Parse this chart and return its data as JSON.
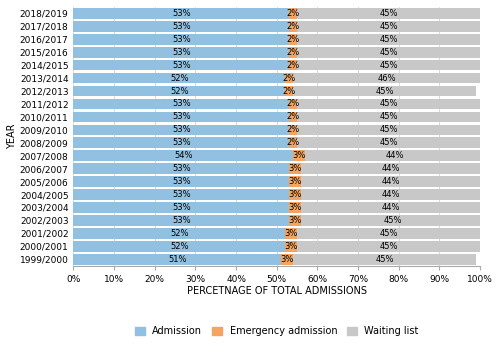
{
  "years": [
    "2018/2019",
    "2017/2018",
    "2016/2017",
    "2015/2016",
    "2014/2015",
    "2013/2014",
    "2012/2013",
    "2011/2012",
    "2010/2011",
    "2009/2010",
    "2008/2009",
    "2007/2008",
    "2006/2007",
    "2005/2006",
    "2004/2005",
    "2003/2004",
    "2002/2003",
    "2001/2002",
    "2000/2001",
    "1999/2000"
  ],
  "admission": [
    53,
    53,
    53,
    53,
    53,
    52,
    52,
    53,
    53,
    53,
    53,
    54,
    53,
    53,
    53,
    53,
    53,
    52,
    52,
    51
  ],
  "emergency": [
    2,
    2,
    2,
    2,
    2,
    2,
    2,
    2,
    2,
    2,
    2,
    3,
    3,
    3,
    3,
    3,
    3,
    3,
    3,
    3
  ],
  "waiting": [
    45,
    45,
    45,
    45,
    45,
    46,
    45,
    45,
    45,
    45,
    45,
    44,
    44,
    44,
    44,
    44,
    45,
    45,
    45,
    45
  ],
  "color_admission": "#92C0E0",
  "color_emergency": "#F4A460",
  "color_waiting": "#C8C8C8",
  "xlabel": "PERCETNAGE OF TOTAL ADMISSIONS",
  "ylabel": "YEAR",
  "legend_labels": [
    "Admission",
    "Emergency admission",
    "Waiting list"
  ],
  "xtick_labels": [
    "0%",
    "10%",
    "20%",
    "30%",
    "40%",
    "50%",
    "60%",
    "70%",
    "80%",
    "90%",
    "100%"
  ],
  "xtick_values": [
    0,
    10,
    20,
    30,
    40,
    50,
    60,
    70,
    80,
    90,
    100
  ],
  "bar_label_fontsize": 6,
  "axis_label_fontsize": 7,
  "tick_fontsize": 6.5,
  "legend_fontsize": 7,
  "bar_height": 0.82
}
